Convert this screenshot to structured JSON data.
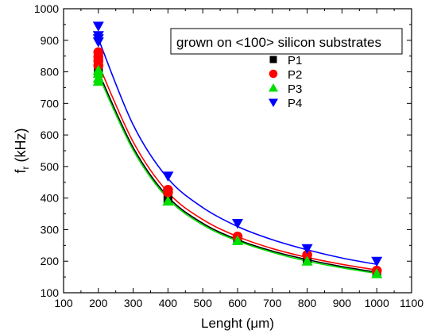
{
  "chart_data": {
    "type": "scatter",
    "xlabel": "Lenght (μm)",
    "ylabel_main": "f",
    "ylabel_sub": "r",
    "ylabel_unit": " (kHz)",
    "xlim": [
      100,
      1100
    ],
    "ylim": [
      100,
      1000
    ],
    "xticks": [
      100,
      200,
      300,
      400,
      500,
      600,
      700,
      800,
      900,
      1000,
      1100
    ],
    "yticks": [
      100,
      200,
      300,
      400,
      500,
      600,
      700,
      800,
      900,
      1000
    ],
    "legend_title": "grown on <100> silicon substrates",
    "legend_position": "top-right",
    "series": [
      {
        "name": "P1",
        "color": "#000000",
        "marker": "square",
        "points": [
          [
            200,
            800
          ],
          [
            200,
            812
          ],
          [
            200,
            825
          ],
          [
            200,
            838
          ],
          [
            400,
            395
          ],
          [
            400,
            402
          ],
          [
            600,
            268
          ],
          [
            800,
            205
          ],
          [
            1000,
            162
          ]
        ],
        "fit": [
          [
            200,
            800
          ],
          [
            300,
            560
          ],
          [
            400,
            404
          ],
          [
            500,
            320
          ],
          [
            600,
            268
          ],
          [
            700,
            232
          ],
          [
            800,
            205
          ],
          [
            900,
            183
          ],
          [
            1000,
            165
          ]
        ]
      },
      {
        "name": "P2",
        "color": "#ff0000",
        "marker": "circle",
        "points": [
          [
            200,
            820
          ],
          [
            200,
            835
          ],
          [
            200,
            848
          ],
          [
            200,
            862
          ],
          [
            400,
            418
          ],
          [
            400,
            426
          ],
          [
            600,
            278
          ],
          [
            800,
            220
          ],
          [
            1000,
            170
          ]
        ],
        "fit": [
          [
            200,
            825
          ],
          [
            300,
            578
          ],
          [
            400,
            418
          ],
          [
            500,
            332
          ],
          [
            600,
            278
          ],
          [
            700,
            240
          ],
          [
            800,
            212
          ],
          [
            900,
            190
          ],
          [
            1000,
            172
          ]
        ]
      },
      {
        "name": "P3",
        "color": "#00e000",
        "marker": "triangle-up",
        "points": [
          [
            200,
            770
          ],
          [
            200,
            780
          ],
          [
            200,
            795
          ],
          [
            200,
            805
          ],
          [
            400,
            390
          ],
          [
            600,
            265
          ],
          [
            800,
            200
          ],
          [
            1000,
            160
          ]
        ],
        "fit": [
          [
            200,
            790
          ],
          [
            300,
            552
          ],
          [
            400,
            398
          ],
          [
            500,
            315
          ],
          [
            600,
            264
          ],
          [
            700,
            228
          ],
          [
            800,
            200
          ],
          [
            900,
            179
          ],
          [
            1000,
            161
          ]
        ]
      },
      {
        "name": "P4",
        "color": "#0000ff",
        "marker": "triangle-down",
        "points": [
          [
            200,
            895
          ],
          [
            200,
            905
          ],
          [
            200,
            915
          ],
          [
            200,
            945
          ],
          [
            400,
            470
          ],
          [
            600,
            320
          ],
          [
            800,
            240
          ],
          [
            1000,
            200
          ]
        ],
        "fit": [
          [
            200,
            905
          ],
          [
            300,
            632
          ],
          [
            400,
            462
          ],
          [
            500,
            370
          ],
          [
            600,
            310
          ],
          [
            700,
            268
          ],
          [
            800,
            236
          ],
          [
            900,
            210
          ],
          [
            1000,
            190
          ]
        ]
      }
    ]
  }
}
